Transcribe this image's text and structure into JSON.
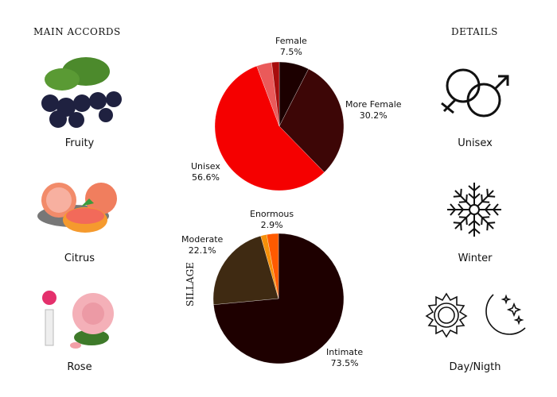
{
  "accords": {
    "title": "MAIN ACCORDS",
    "items": [
      {
        "label": "Fruity"
      },
      {
        "label": "Citrus"
      },
      {
        "label": "Rose"
      }
    ]
  },
  "details": {
    "title": "DETAILS",
    "items": [
      {
        "label": "Unisex",
        "icon": "gender-symbols-icon"
      },
      {
        "label": "Winter",
        "icon": "snowflake-icon"
      },
      {
        "label": "Day/Nigth",
        "icon": "sun-moon-icon"
      }
    ]
  },
  "chart_data": [
    {
      "type": "pie",
      "title": "",
      "start": "top",
      "direction": "clockwise",
      "slices": [
        {
          "name": "Female",
          "value": 7.5,
          "label": "7.5%",
          "color": "#1c0000"
        },
        {
          "name": "More Female",
          "value": 30.2,
          "label": "30.2%",
          "color": "#3d0606"
        },
        {
          "name": "Unisex",
          "value": 56.6,
          "label": "56.6%",
          "color": "#f50000"
        },
        {
          "name": "",
          "value": 3.8,
          "label": "",
          "color": "#ea5a5a"
        },
        {
          "name": "",
          "value": 1.9,
          "label": "",
          "color": "#a80d0d"
        }
      ]
    },
    {
      "type": "pie",
      "title": "SILLAGE",
      "start": "top",
      "direction": "clockwise",
      "slices": [
        {
          "name": "Intimate",
          "value": 73.5,
          "label": "73.5%",
          "color": "#1e0000"
        },
        {
          "name": "Moderate",
          "value": 22.1,
          "label": "22.1%",
          "color": "#3f2a12"
        },
        {
          "name": "",
          "value": 1.5,
          "label": "",
          "color": "#f5900a"
        },
        {
          "name": "Enormous",
          "value": 2.9,
          "label": "2.9%",
          "color": "#ff5a00"
        }
      ]
    }
  ]
}
